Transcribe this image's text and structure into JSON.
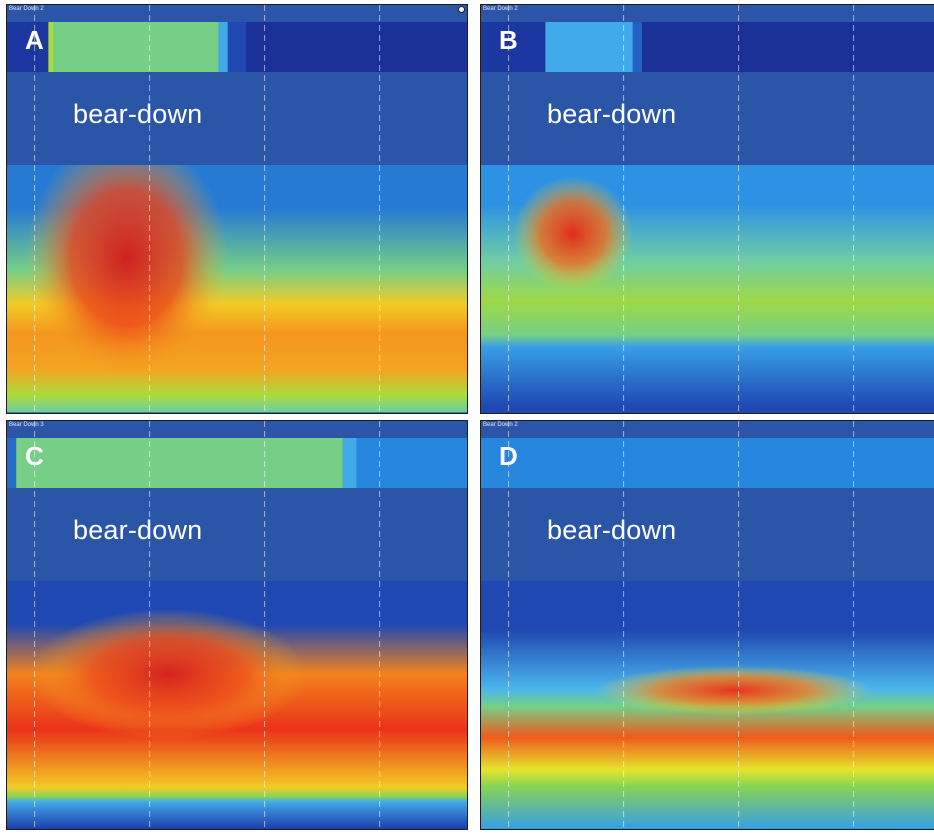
{
  "chart_data": [
    {
      "type": "heatmap",
      "panel": "A",
      "window_title": "Bear Down 2",
      "annotation": "bear-down",
      "top_strip": [
        {
          "from": 0.0,
          "to": 0.09,
          "value": 0.1
        },
        {
          "from": 0.09,
          "to": 0.1,
          "value": 0.55
        },
        {
          "from": 0.1,
          "to": 0.46,
          "value": 0.42
        },
        {
          "from": 0.46,
          "to": 0.48,
          "value": 0.3
        },
        {
          "from": 0.48,
          "to": 0.52,
          "value": 0.14
        },
        {
          "from": 0.52,
          "to": 1.0,
          "value": 0.08
        }
      ],
      "bands": [
        {
          "from": 0.0,
          "to": 0.35,
          "value": 0.22
        },
        {
          "from": 0.35,
          "to": 0.5,
          "value": 0.42
        },
        {
          "from": 0.5,
          "to": 0.62,
          "value": 0.72
        },
        {
          "from": 0.62,
          "to": 0.74,
          "value": 0.8
        },
        {
          "from": 0.74,
          "to": 0.9,
          "value": 0.78
        },
        {
          "from": 0.9,
          "to": 0.96,
          "value": 0.55
        },
        {
          "from": 0.96,
          "to": 1.03,
          "value": 0.4
        },
        {
          "from": 1.03,
          "to": 1.2,
          "value": 0.12
        }
      ],
      "hotspot": {
        "x": 0.26,
        "y": 0.62,
        "rx": 0.22,
        "ry": 0.3,
        "value": 0.96
      }
    },
    {
      "type": "heatmap",
      "panel": "B",
      "window_title": "Bear Down 2",
      "annotation": "bear-down",
      "top_strip": [
        {
          "from": 0.0,
          "to": 0.14,
          "value": 0.1
        },
        {
          "from": 0.14,
          "to": 0.33,
          "value": 0.3
        },
        {
          "from": 0.33,
          "to": 0.35,
          "value": 0.18
        },
        {
          "from": 0.35,
          "to": 1.0,
          "value": 0.08
        }
      ],
      "bands": [
        {
          "from": 0.0,
          "to": 0.32,
          "value": 0.26
        },
        {
          "from": 0.32,
          "to": 0.45,
          "value": 0.4
        },
        {
          "from": 0.45,
          "to": 0.65,
          "value": 0.52
        },
        {
          "from": 0.65,
          "to": 0.72,
          "value": 0.42
        },
        {
          "from": 0.72,
          "to": 0.75,
          "value": 0.28
        },
        {
          "from": 0.75,
          "to": 1.2,
          "value": 0.14
        }
      ],
      "hotspot": {
        "x": 0.2,
        "y": 0.56,
        "rx": 0.13,
        "ry": 0.14,
        "value": 0.92
      }
    },
    {
      "type": "heatmap",
      "panel": "C",
      "window_title": "Bear Down 3",
      "annotation": "bear-down",
      "top_strip": [
        {
          "from": 0.0,
          "to": 0.02,
          "value": 0.2
        },
        {
          "from": 0.02,
          "to": 0.73,
          "value": 0.42
        },
        {
          "from": 0.73,
          "to": 0.76,
          "value": 0.3
        },
        {
          "from": 0.76,
          "to": 1.0,
          "value": 0.24
        }
      ],
      "bands": [
        {
          "from": 0.0,
          "to": 0.35,
          "value": 0.14
        },
        {
          "from": 0.35,
          "to": 0.4,
          "value": 0.82
        },
        {
          "from": 0.4,
          "to": 0.8,
          "value": 0.9
        },
        {
          "from": 0.8,
          "to": 0.86,
          "value": 0.72
        },
        {
          "from": 0.86,
          "to": 0.88,
          "value": 0.46
        },
        {
          "from": 0.88,
          "to": 0.9,
          "value": 0.3
        },
        {
          "from": 0.9,
          "to": 1.2,
          "value": 0.12
        }
      ],
      "hotspot": {
        "x": 0.35,
        "y": 0.62,
        "rx": 0.3,
        "ry": 0.16,
        "value": 0.95
      }
    },
    {
      "type": "heatmap",
      "panel": "D",
      "window_title": "Bear Down 2",
      "annotation": "bear-down",
      "top_strip": [
        {
          "from": 0.0,
          "to": 1.0,
          "value": 0.24
        }
      ],
      "bands": [
        {
          "from": 0.0,
          "to": 0.4,
          "value": 0.14
        },
        {
          "from": 0.4,
          "to": 0.47,
          "value": 0.32
        },
        {
          "from": 0.47,
          "to": 0.54,
          "value": 0.42
        },
        {
          "from": 0.54,
          "to": 0.72,
          "value": 0.86
        },
        {
          "from": 0.72,
          "to": 0.8,
          "value": 0.66
        },
        {
          "from": 0.8,
          "to": 0.86,
          "value": 0.46
        },
        {
          "from": 0.86,
          "to": 1.2,
          "value": 0.28
        }
      ],
      "hotspot": {
        "x": 0.55,
        "y": 0.66,
        "rx": 0.3,
        "ry": 0.06,
        "value": 0.9
      }
    }
  ]
}
